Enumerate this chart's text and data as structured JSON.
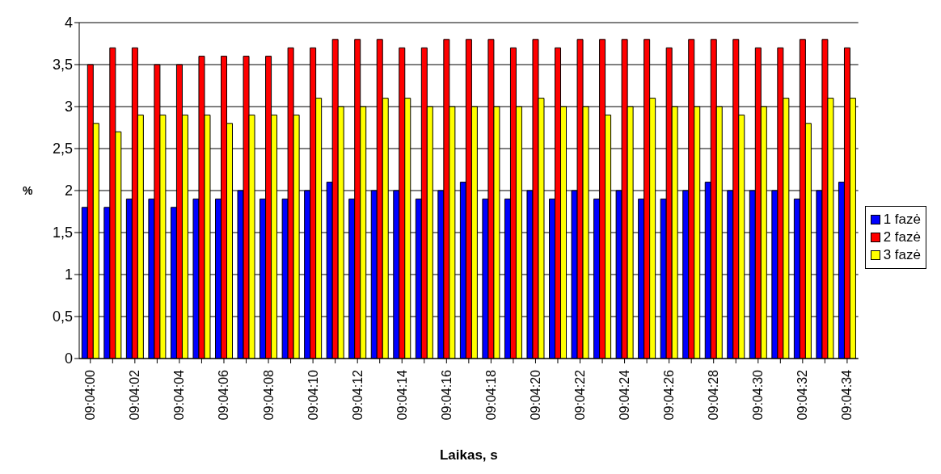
{
  "chart_data": {
    "type": "bar",
    "xlabel": "Laikas, s",
    "ylabel": "%",
    "categories": [
      "09:04:00",
      null,
      "09:04:02",
      null,
      "09:04:04",
      null,
      "09:04:06",
      null,
      "09:04:08",
      null,
      "09:04:10",
      null,
      "09:04:12",
      null,
      "09:04:14",
      null,
      "09:04:16",
      null,
      "09:04:18",
      null,
      "09:04:20",
      null,
      "09:04:22",
      null,
      "09:04:24",
      null,
      "09:04:26",
      null,
      "09:04:28",
      null,
      "09:04:30",
      null,
      "09:04:32",
      null,
      "09:04:34"
    ],
    "series": [
      {
        "name": "1 fazė",
        "color": "#0000ff",
        "values": [
          1.8,
          1.8,
          1.9,
          1.9,
          1.8,
          1.9,
          1.9,
          2.0,
          1.9,
          1.9,
          2.0,
          2.1,
          1.9,
          2.0,
          2.0,
          1.9,
          2.0,
          2.1,
          1.9,
          1.9,
          2.0,
          1.9,
          2.0,
          1.9,
          2.0,
          1.9,
          1.9,
          2.0,
          2.1,
          2.0,
          2.0,
          2.0,
          1.9,
          2.0,
          2.1
        ]
      },
      {
        "name": "2 fazė",
        "color": "#ff0000",
        "values": [
          3.5,
          3.7,
          3.7,
          3.5,
          3.5,
          3.6,
          3.6,
          3.6,
          3.6,
          3.7,
          3.7,
          3.8,
          3.8,
          3.8,
          3.7,
          3.7,
          3.8,
          3.8,
          3.8,
          3.7,
          3.8,
          3.7,
          3.8,
          3.8,
          3.8,
          3.8,
          3.7,
          3.8,
          3.8,
          3.8,
          3.7,
          3.7,
          3.8,
          3.8,
          3.7
        ]
      },
      {
        "name": "3 fazė",
        "color": "#ffff00",
        "values": [
          2.8,
          2.7,
          2.9,
          2.9,
          2.9,
          2.9,
          2.8,
          2.9,
          2.9,
          2.9,
          3.1,
          3.0,
          3.0,
          3.1,
          3.1,
          3.0,
          3.0,
          3.0,
          3.0,
          3.0,
          3.1,
          3.0,
          3.0,
          2.9,
          3.0,
          3.1,
          3.0,
          3.0,
          3.0,
          2.9,
          3.0,
          3.1,
          2.8,
          3.1,
          3.1
        ]
      }
    ],
    "ylim": [
      0,
      4
    ],
    "yticks": [
      0,
      {
        "value": 0.5,
        "label": "0,5"
      },
      1,
      {
        "value": 1.5,
        "label": "1,5"
      },
      2,
      {
        "value": 2.5,
        "label": "2,5"
      },
      3,
      {
        "value": 3.5,
        "label": "3,5"
      },
      4
    ],
    "grid": "y",
    "legend": "right"
  }
}
